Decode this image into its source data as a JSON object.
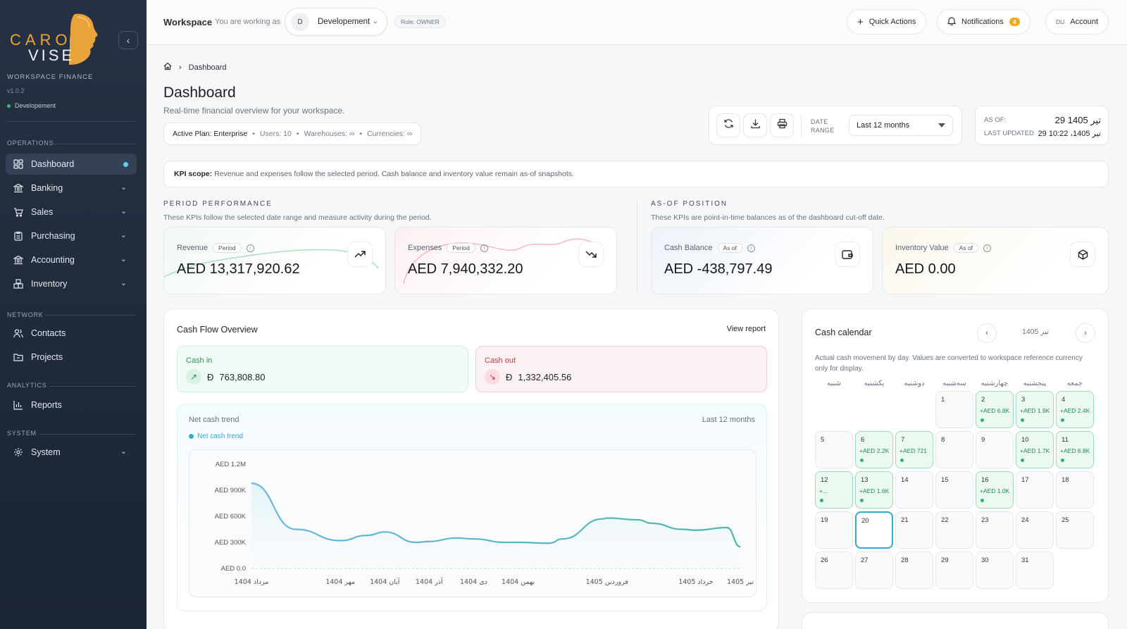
{
  "sidebar": {
    "logo_text_top": "CARO",
    "logo_text_bottom": "VISE",
    "workspace_label": "WORKSPACE FINANCE",
    "version": "v1.0.2",
    "environment": "Developement",
    "sections": {
      "operations": "OPERATIONS",
      "network": "NETWORK",
      "analytics": "ANALYTICS",
      "system": "SYSTEM"
    },
    "items": {
      "dashboard": "Dashboard",
      "banking": "Banking",
      "sales": "Sales",
      "purchasing": "Purchasing",
      "accounting": "Accounting",
      "inventory": "Inventory",
      "contacts": "Contacts",
      "projects": "Projects",
      "reports": "Reports",
      "system": "System"
    }
  },
  "topbar": {
    "title": "Workspace",
    "working_as": "You are working as",
    "workspace_initial": "D",
    "workspace_name": "Developement",
    "role": "Role: OWNER",
    "quick_actions": "Quick Actions",
    "notifications": "Notifications",
    "notifications_count": "4",
    "account_initials": "DU",
    "account": "Account"
  },
  "page": {
    "breadcrumb": "Dashboard",
    "title": "Dashboard",
    "subtitle": "Real-time financial overview for your workspace.",
    "plan": {
      "name": "Active Plan: Enterprise",
      "users": "Users: 10",
      "warehouses": "Warehouses: ∞",
      "currencies": "Currencies: ∞"
    },
    "date_range_label_1": "DATE",
    "date_range_label_2": "RANGE",
    "date_range_value": "Last 12 months",
    "as_of_label": "AS OF:",
    "as_of_value": "29 تیر 1405",
    "last_updated_label": "LAST UPDATED",
    "last_updated_value": "29 تیر 1405، 10:22",
    "kpi_scope_bold": "KPI scope:",
    "kpi_scope_text": "Revenue and expenses follow the selected period. Cash balance and inventory value remain as-of snapshots."
  },
  "kpis": {
    "period_title": "PERIOD PERFORMANCE",
    "period_desc": "These KPIs follow the selected date range and measure activity during the period.",
    "asof_title": "AS-OF POSITION",
    "asof_desc": "These KPIs are point-in-time balances as of the dashboard cut-off date.",
    "revenue": {
      "label": "Revenue",
      "tag": "Period",
      "value": "AED 13,317,920.62"
    },
    "expenses": {
      "label": "Expenses",
      "tag": "Period",
      "value": "AED 7,940,332.20"
    },
    "cash": {
      "label": "Cash Balance",
      "tag": "As of",
      "value": "AED -438,797.49"
    },
    "inventory": {
      "label": "Inventory Value",
      "tag": "As of",
      "value": "AED 0.00"
    }
  },
  "cashflow": {
    "title": "Cash Flow Overview",
    "view_report": "View report",
    "cash_in_label": "Cash in",
    "cash_in_value": "763,808.80",
    "cash_out_label": "Cash out",
    "cash_out_value": "1,332,405.56",
    "currency_symbol": "Ð",
    "trend_title": "Net cash trend",
    "trend_range": "Last 12 months",
    "legend": "Net cash trend"
  },
  "chart_data": {
    "type": "line",
    "title": "Net cash trend",
    "y_ticks": [
      "AED 0.0",
      "AED 300K",
      "AED 600K",
      "AED 900K",
      "AED 1.2M"
    ],
    "ylim": [
      0,
      1200000
    ],
    "x_labels": [
      "مرداد 1404",
      "مهر 1404",
      "آبان 1404",
      "آذر 1404",
      "دی 1404",
      "بهمن 1404",
      "فروردین 1405",
      "خرداد 1405",
      "تیر 1405"
    ],
    "x_positions": [
      0,
      2,
      3,
      4,
      5,
      6,
      8,
      10,
      11
    ],
    "series": [
      {
        "name": "Net cash trend",
        "color": "#5ab8cf",
        "x": [
          0,
          1,
          2,
          2.6,
          3,
          3.7,
          4,
          4.6,
          5,
          5.7,
          6,
          6.7,
          7,
          7.9,
          8,
          8.7,
          9,
          9.7,
          10,
          10.7,
          11
        ],
        "values": [
          980000,
          450000,
          320000,
          380000,
          420000,
          300000,
          310000,
          350000,
          340000,
          300000,
          300000,
          290000,
          340000,
          570000,
          580000,
          560000,
          520000,
          450000,
          440000,
          470000,
          250000
        ]
      }
    ]
  },
  "calendar": {
    "title": "Cash calendar",
    "month": "تیر 1405",
    "description": "Actual cash movement by day. Values are converted to workspace reference currency only for display.",
    "weekdays": [
      "شنبه",
      "یکشنبه",
      "دوشنبه",
      "سه‌شنبه",
      "چهارشنبه",
      "پنجشنبه",
      "جمعه"
    ],
    "start_offset": 3,
    "days": [
      {
        "n": "1",
        "amt": ""
      },
      {
        "n": "2",
        "amt": "+AED 6.8K"
      },
      {
        "n": "3",
        "amt": "+AED 1.9K"
      },
      {
        "n": "4",
        "amt": "+AED 2.4K"
      },
      {
        "n": "5",
        "amt": ""
      },
      {
        "n": "6",
        "amt": "+AED 2.2K"
      },
      {
        "n": "7",
        "amt": "+AED 721"
      },
      {
        "n": "8",
        "amt": ""
      },
      {
        "n": "9",
        "amt": ""
      },
      {
        "n": "10",
        "amt": "+AED 1.7K"
      },
      {
        "n": "11",
        "amt": "+AED 8.8K"
      },
      {
        "n": "12",
        "amt": "+..."
      },
      {
        "n": "13",
        "amt": "+AED 1.6K"
      },
      {
        "n": "14",
        "amt": ""
      },
      {
        "n": "15",
        "amt": ""
      },
      {
        "n": "16",
        "amt": "+AED 1.0K"
      },
      {
        "n": "17",
        "amt": ""
      },
      {
        "n": "18",
        "amt": ""
      },
      {
        "n": "19",
        "amt": ""
      },
      {
        "n": "20",
        "amt": "",
        "today": true
      },
      {
        "n": "21",
        "amt": ""
      },
      {
        "n": "22",
        "amt": ""
      },
      {
        "n": "23",
        "amt": ""
      },
      {
        "n": "24",
        "amt": ""
      },
      {
        "n": "25",
        "amt": ""
      },
      {
        "n": "26",
        "amt": ""
      },
      {
        "n": "27",
        "amt": ""
      },
      {
        "n": "28",
        "amt": ""
      },
      {
        "n": "29",
        "amt": ""
      },
      {
        "n": "30",
        "amt": ""
      },
      {
        "n": "31",
        "amt": ""
      }
    ]
  }
}
